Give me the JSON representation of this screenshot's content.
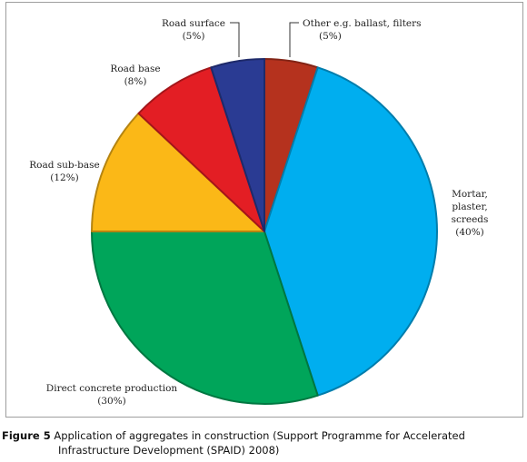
{
  "chart_data": {
    "type": "pie",
    "slices": [
      {
        "label": "Other e.g. ballast, filters",
        "pct_label": "(5%)",
        "value": 5,
        "color": "#b5321e"
      },
      {
        "label": "Mortar, plaster, screeds",
        "label_lines": [
          "Mortar,",
          "plaster,",
          "screeds"
        ],
        "pct_label": "(40%)",
        "value": 40,
        "color": "#00aeef"
      },
      {
        "label": "Direct concrete production",
        "pct_label": "(30%)",
        "value": 30,
        "color": "#00a55a"
      },
      {
        "label": "Road sub-base",
        "pct_label": "(12%)",
        "value": 12,
        "color": "#fbb817"
      },
      {
        "label": "Road base",
        "pct_label": "(8%)",
        "value": 8,
        "color": "#e31e24"
      },
      {
        "label": "Road surface",
        "pct_label": "(5%)",
        "value": 5,
        "color": "#2a3b93"
      }
    ],
    "start_angle_deg": 0,
    "direction": "clockwise"
  },
  "caption": {
    "figure_label": "Figure 5",
    "line1": "Application of aggregates in construction (Support Programme for Accelerated",
    "line2": "Infrastructure Development (SPAID) 2008)"
  }
}
